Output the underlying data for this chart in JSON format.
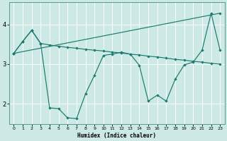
{
  "xlabel": "Humidex (Indice chaleur)",
  "bg_color": "#cce9e6",
  "grid_color": "#b8dbd8",
  "line_color": "#1a7a6e",
  "xlim": [
    -0.5,
    23.5
  ],
  "ylim": [
    1.5,
    4.55
  ],
  "yticks": [
    2,
    3,
    4
  ],
  "xticks": [
    0,
    1,
    2,
    3,
    4,
    5,
    6,
    7,
    8,
    9,
    10,
    11,
    12,
    13,
    14,
    15,
    16,
    17,
    18,
    19,
    20,
    21,
    22,
    23
  ],
  "lines": [
    {
      "x": [
        0,
        1,
        2,
        3,
        4,
        5,
        6,
        7,
        8,
        9,
        10,
        11,
        12,
        13,
        14,
        15,
        16,
        17,
        18,
        19,
        20,
        21,
        22,
        23
      ],
      "y": [
        3.27,
        3.57,
        3.85,
        3.52,
        3.48,
        3.45,
        3.42,
        3.4,
        3.37,
        3.35,
        3.33,
        3.3,
        3.28,
        3.25,
        3.23,
        3.2,
        3.18,
        3.15,
        3.12,
        3.1,
        3.07,
        3.05,
        3.02,
        3.0
      ]
    },
    {
      "x": [
        0,
        1,
        2,
        3,
        4,
        5,
        6,
        7,
        8,
        9,
        10,
        11,
        12,
        13,
        14,
        15,
        16,
        17,
        18,
        19,
        20,
        21,
        22,
        23
      ],
      "y": [
        3.27,
        3.57,
        3.85,
        3.52,
        1.9,
        1.88,
        1.65,
        1.63,
        2.25,
        2.72,
        3.22,
        3.25,
        3.3,
        3.25,
        2.97,
        2.07,
        2.22,
        2.07,
        2.62,
        2.98,
        3.05,
        3.35,
        4.28,
        3.35
      ]
    },
    {
      "x": [
        0,
        23
      ],
      "y": [
        3.27,
        4.28
      ]
    }
  ]
}
